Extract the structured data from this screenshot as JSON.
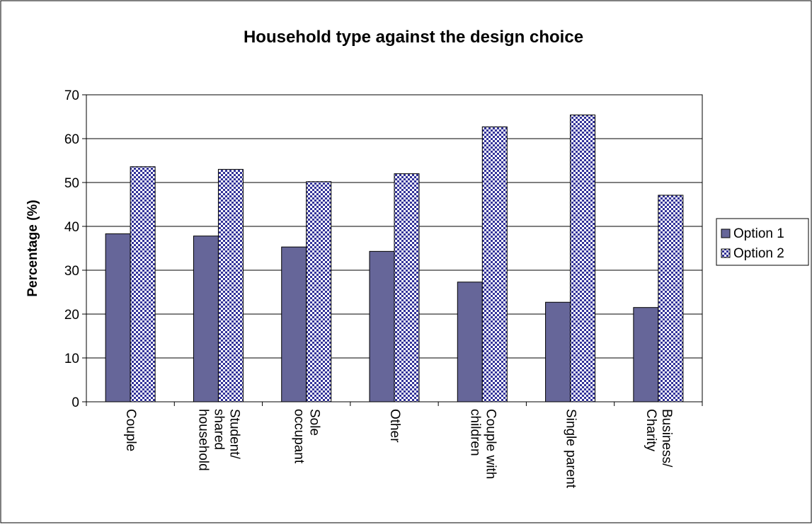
{
  "chart_data": {
    "type": "bar",
    "title": "Household type against the design choice",
    "xlabel": "",
    "ylabel": "Percentage (%)",
    "ylim": [
      0,
      70
    ],
    "yticks": [
      0,
      10,
      20,
      30,
      40,
      50,
      60,
      70
    ],
    "grid": true,
    "legend_position": "right",
    "categories": [
      [
        "Couple"
      ],
      [
        "Student/",
        "shared",
        "household"
      ],
      [
        "Sole",
        "occupant"
      ],
      [
        "Other"
      ],
      [
        "Couple with",
        "children"
      ],
      [
        "Single parent"
      ],
      [
        "Business/",
        "Charity"
      ]
    ],
    "series": [
      {
        "name": "Option 1",
        "color": "#666699",
        "pattern": "solid",
        "values": [
          38.3,
          37.8,
          35.3,
          34.3,
          27.3,
          22.7,
          21.5
        ]
      },
      {
        "name": "Option 2",
        "color": "#333399",
        "pattern": "checkerboard",
        "values": [
          53.6,
          53.0,
          50.2,
          52.0,
          62.7,
          65.4,
          47.1
        ]
      }
    ]
  }
}
